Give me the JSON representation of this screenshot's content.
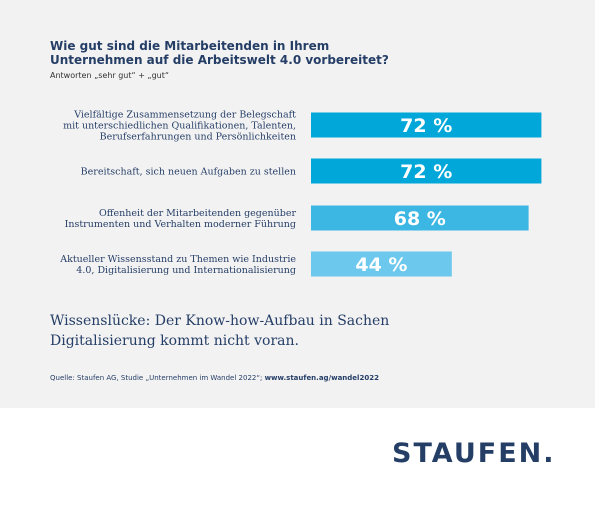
{
  "title": "Wie gut sind die Mitarbeitenden in Ihrem Unternehmen auf die Arbeitswelt 4.0 vorbereitet?",
  "subtitle": "Antworten „sehr gut“ + „gut“",
  "chart_data": {
    "type": "bar",
    "orientation": "horizontal",
    "categories": [
      [
        "Vielfältige Zusammensetzung der Belegschaft",
        "mit unterschiedlichen Qualifikationen, Talenten,",
        "Berufserfahrungen und Persönlichkeiten"
      ],
      [
        "Bereitschaft, sich neuen Aufgaben zu stellen"
      ],
      [
        "Offenheit der Mitarbeitenden gegenüber",
        "Instrumenten und Verhalten moderner Führung"
      ],
      [
        "Aktueller Wissensstand zu Themen wie Industrie",
        "4.0, Digitalisierung und Internationalisierung"
      ]
    ],
    "values": [
      72,
      72,
      68,
      44
    ],
    "value_labels": [
      "72 %",
      "72 %",
      "68 %",
      "44 %"
    ],
    "bar_colors": [
      "#00a7d8",
      "#00a7d8",
      "#3cb6e3",
      "#6cc8ec"
    ],
    "xlim": [
      0,
      100
    ],
    "grid": false,
    "legend": "none"
  },
  "takeaway": "Wissenslücke: Der Know-how-Aufbau in Sachen Digitalisierung kommt nicht voran.",
  "source": {
    "text": "Quelle: Staufen AG, Studie „Unternehmen im Wandel 2022“; ",
    "url": "www.staufen.ag/wandel2022"
  },
  "logo": "STAUFEN."
}
